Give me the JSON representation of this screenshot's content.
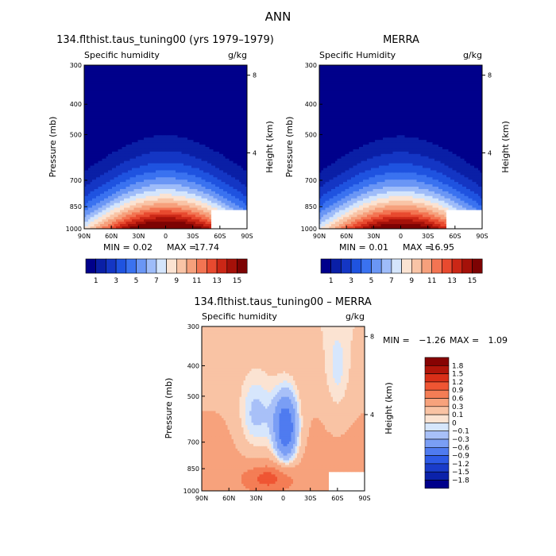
{
  "figure": {
    "title": "ANN"
  },
  "colors": {
    "abs_colorbar": [
      "#00008b",
      "#0a1fa6",
      "#1436c4",
      "#1f53e0",
      "#3a72f0",
      "#6a96f5",
      "#9ebcf9",
      "#d4e5fc",
      "#fbe3d2",
      "#f9c4a6",
      "#f6a07c",
      "#f37452",
      "#e84a2f",
      "#cb2716",
      "#a51109",
      "#7d0303"
    ],
    "diff_colorbar": [
      "#00008b",
      "#0b22aa",
      "#1a3cca",
      "#2d5ae6",
      "#4f7bf0",
      "#7a9ef5",
      "#a8c0f8",
      "#d6e6fc",
      "#fbe3d2",
      "#f9c3a4",
      "#f7a27c",
      "#f47d55",
      "#ef5533",
      "#d92f18",
      "#b1150a",
      "#870303"
    ]
  },
  "chart_data": [
    {
      "type": "heatmap",
      "title": "134.flthist.taus_tuning00 (yrs 1979–1979)",
      "subtitle_left": "Specific humidity",
      "subtitle_right": "g/kg",
      "ylabel": "Pressure (mb)",
      "ylabel_right": "Height (km)",
      "x_ticks": [
        "90N",
        "60N",
        "30N",
        "0",
        "30S",
        "60S",
        "90S"
      ],
      "y_ticks": [
        "300",
        "400",
        "500",
        "700",
        "850",
        "1000"
      ],
      "right_ticks": [
        "8",
        "4"
      ],
      "stats": {
        "min_label": "MIN =",
        "min": "0.02",
        "max_label": "MAX =",
        "max": "17.74"
      },
      "colorbar_labels": [
        "1",
        "3",
        "5",
        "7",
        "9",
        "11",
        "13",
        "15"
      ],
      "peak": 17.74,
      "xlim": [
        90,
        -90
      ],
      "ylim": [
        300,
        1000
      ]
    },
    {
      "type": "heatmap",
      "title": "MERRA",
      "subtitle_left": "Specific Humidity",
      "subtitle_right": "g/kg",
      "ylabel": "Pressure (mb)",
      "ylabel_right": "Height (km)",
      "x_ticks": [
        "90N",
        "60N",
        "30N",
        "0",
        "30S",
        "60S",
        "90S"
      ],
      "y_ticks": [
        "300",
        "400",
        "500",
        "700",
        "850",
        "1000"
      ],
      "right_ticks": [
        "8",
        "4"
      ],
      "stats": {
        "min_label": "MIN =",
        "min": "0.01",
        "max_label": "MAX =",
        "max": "16.95"
      },
      "colorbar_labels": [
        "1",
        "3",
        "5",
        "7",
        "9",
        "11",
        "13",
        "15"
      ],
      "peak": 16.95,
      "xlim": [
        90,
        -90
      ],
      "ylim": [
        300,
        1000
      ]
    },
    {
      "type": "heatmap",
      "title": "134.flthist.taus_tuning00 – MERRA",
      "subtitle_left": "Specific humidity",
      "subtitle_right": "g/kg",
      "ylabel": "Pressure (mb)",
      "ylabel_right": "Height (km)",
      "x_ticks": [
        "90N",
        "60N",
        "30N",
        "0",
        "30S",
        "60S",
        "90S"
      ],
      "y_ticks": [
        "300",
        "400",
        "500",
        "700",
        "850",
        "1000"
      ],
      "right_ticks": [
        "8",
        "4"
      ],
      "stats": {
        "min_label": "MIN =",
        "min": "−1.26",
        "max_label": "MAX =",
        "max": "1.09"
      },
      "colorbar_labels": [
        "1.8",
        "1.5",
        "1.2",
        "0.9",
        "0.6",
        "0.3",
        "0.1",
        "0",
        "−0.1",
        "−0.3",
        "−0.6",
        "−0.9",
        "−1.2",
        "−1.5",
        "−1.8"
      ],
      "xlim": [
        90,
        -90
      ],
      "ylim": [
        300,
        1000
      ]
    }
  ]
}
